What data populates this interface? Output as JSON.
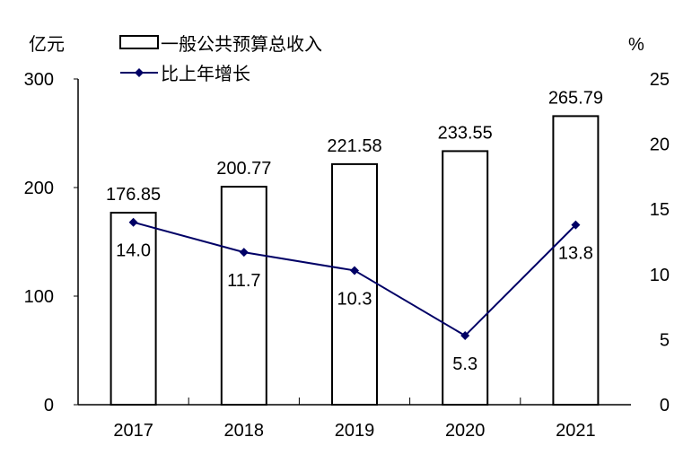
{
  "chart_data": {
    "type": "bar+line",
    "categories": [
      "2017",
      "2018",
      "2019",
      "2020",
      "2021"
    ],
    "series": [
      {
        "name": "一般公共预算总收入",
        "type": "bar",
        "axis": "left",
        "values": [
          176.85,
          200.77,
          221.58,
          233.55,
          265.79
        ],
        "labels": [
          "176.85",
          "200.77",
          "221.58",
          "233.55",
          "265.79"
        ]
      },
      {
        "name": "比上年增长",
        "type": "line",
        "axis": "right",
        "values": [
          14.0,
          11.7,
          10.3,
          5.3,
          13.8
        ],
        "labels": [
          "14.0",
          "11.7",
          "10.3",
          "5.3",
          "13.8"
        ],
        "color": "#000066"
      }
    ],
    "left_axis": {
      "unit": "亿元",
      "range": [
        0,
        300
      ],
      "ticks": [
        "0",
        "100",
        "200",
        "300"
      ]
    },
    "right_axis": {
      "unit": "%",
      "range": [
        0,
        25
      ],
      "ticks": [
        "0",
        "5",
        "10",
        "15",
        "20",
        "25"
      ]
    },
    "grid": false,
    "legend_position": "top"
  }
}
